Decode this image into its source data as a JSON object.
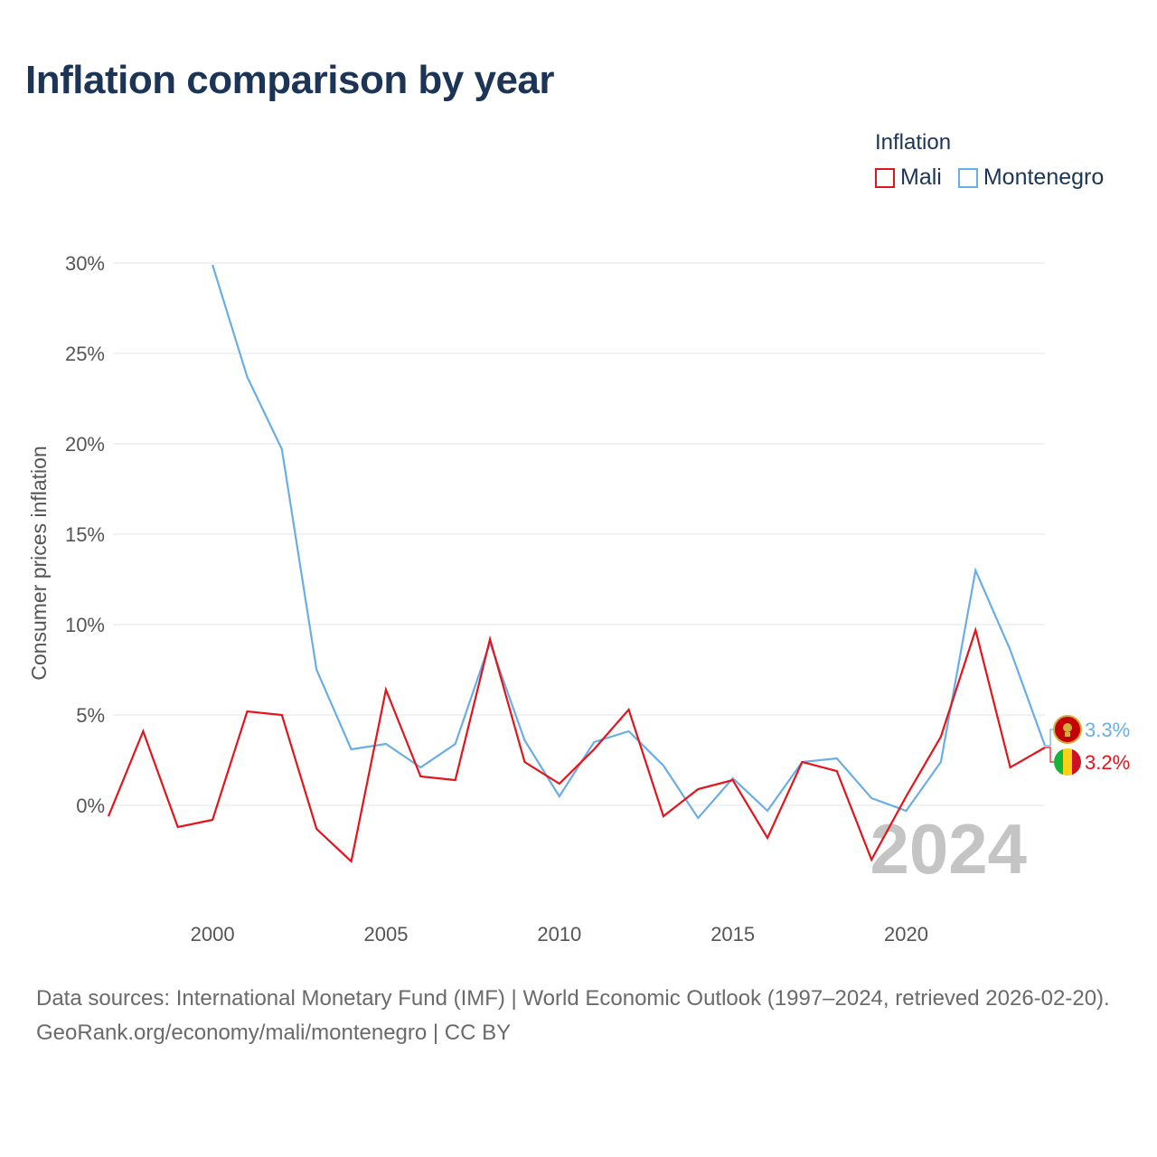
{
  "title": "Inflation comparison by year",
  "legend": {
    "title": "Inflation",
    "items": [
      {
        "label": "Mali",
        "color": "#e3141b"
      },
      {
        "label": "Montenegro",
        "color": "#6aaee6"
      }
    ]
  },
  "year_label": "2024",
  "footer": {
    "sources": "Data sources: International Monetary Fund (IMF) | World Economic Outlook (1997–2024, retrieved 2026-02-20).",
    "credit": "GeoRank.org/economy/mali/montenegro | CC BY"
  },
  "chart_data": {
    "type": "line",
    "title": "Inflation comparison by year",
    "xlabel": "",
    "ylabel": "Consumer prices inflation",
    "xlim": [
      1997,
      2024
    ],
    "ylim": [
      -5.9,
      31
    ],
    "x_ticks": [
      2000,
      2005,
      2010,
      2015,
      2020
    ],
    "y_ticks": [
      0,
      5,
      10,
      15,
      20,
      25,
      30
    ],
    "y_tick_labels": [
      "0%",
      "5%",
      "10%",
      "15%",
      "20%",
      "25%",
      "30%"
    ],
    "grid": true,
    "legend_position": "top-right",
    "series": [
      {
        "name": "Mali",
        "color": "#e3141b",
        "end_label": "3.2%",
        "flag": "mali-flag",
        "x": [
          1997,
          1998,
          1999,
          2000,
          2001,
          2002,
          2003,
          2004,
          2005,
          2006,
          2007,
          2008,
          2009,
          2010,
          2011,
          2012,
          2013,
          2014,
          2015,
          2016,
          2017,
          2018,
          2019,
          2020,
          2021,
          2022,
          2023,
          2024
        ],
        "values": [
          -0.6,
          4.1,
          -1.2,
          -0.8,
          5.2,
          5.0,
          -1.3,
          -3.1,
          6.4,
          1.6,
          1.4,
          9.2,
          2.4,
          1.2,
          3.1,
          5.3,
          -0.6,
          0.9,
          1.4,
          -1.8,
          2.4,
          1.9,
          -3.0,
          0.5,
          3.8,
          9.7,
          2.1,
          3.2
        ]
      },
      {
        "name": "Montenegro",
        "color": "#6aaee6",
        "end_label": "3.3%",
        "flag": "montenegro-flag",
        "x": [
          2000,
          2001,
          2002,
          2003,
          2004,
          2005,
          2006,
          2007,
          2008,
          2009,
          2010,
          2011,
          2012,
          2013,
          2014,
          2015,
          2016,
          2017,
          2018,
          2019,
          2020,
          2021,
          2022,
          2023,
          2024
        ],
        "values": [
          29.9,
          23.7,
          19.7,
          7.5,
          3.1,
          3.4,
          2.1,
          3.4,
          9.0,
          3.6,
          0.5,
          3.5,
          4.1,
          2.2,
          -0.7,
          1.5,
          -0.3,
          2.4,
          2.6,
          0.4,
          -0.3,
          2.4,
          13.0,
          8.6,
          3.3
        ]
      }
    ]
  }
}
